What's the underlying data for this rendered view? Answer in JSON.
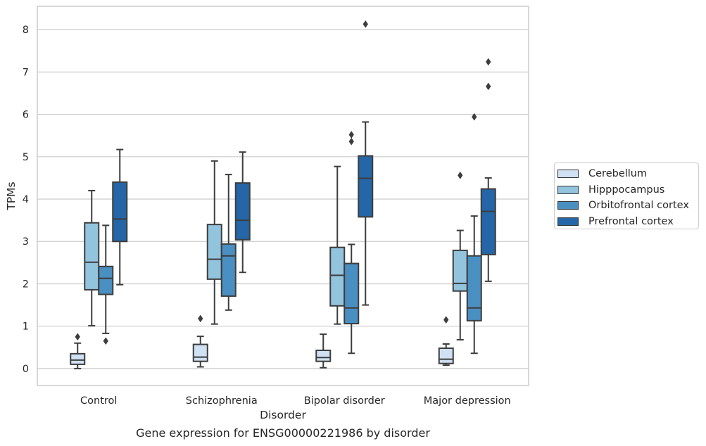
{
  "chart_data": {
    "type": "boxplot",
    "title": "",
    "xlabel": "Disorder",
    "ylabel": "TPMs",
    "ylim": [
      -0.4,
      8.55
    ],
    "yticks": [
      0,
      1,
      2,
      3,
      4,
      5,
      6,
      7,
      8
    ],
    "grid": true,
    "legend_position": "right",
    "categories": [
      "Control",
      "Schizophrenia",
      "Bipolar disorder",
      "Major depression"
    ],
    "series": [
      {
        "name": "Cerebellum",
        "color": "#cfe1f2",
        "boxes": [
          {
            "whislo": 0.0,
            "q1": 0.1,
            "med": 0.2,
            "q3": 0.35,
            "whishi": 0.6,
            "fliers": [
              0.75
            ]
          },
          {
            "whislo": 0.04,
            "q1": 0.17,
            "med": 0.27,
            "q3": 0.57,
            "whishi": 0.76,
            "fliers": [
              1.18
            ]
          },
          {
            "whislo": 0.02,
            "q1": 0.17,
            "med": 0.26,
            "q3": 0.43,
            "whishi": 0.81,
            "fliers": []
          },
          {
            "whislo": 0.08,
            "q1": 0.12,
            "med": 0.22,
            "q3": 0.48,
            "whishi": 0.58,
            "fliers": [
              1.15
            ]
          }
        ]
      },
      {
        "name": "Hipppocampus",
        "color": "#93c4de",
        "boxes": [
          {
            "whislo": 1.01,
            "q1": 1.86,
            "med": 2.51,
            "q3": 3.44,
            "whishi": 4.2,
            "fliers": []
          },
          {
            "whislo": 1.05,
            "q1": 2.11,
            "med": 2.58,
            "q3": 3.4,
            "whishi": 4.9,
            "fliers": []
          },
          {
            "whislo": 1.05,
            "q1": 1.48,
            "med": 2.2,
            "q3": 2.86,
            "whishi": 4.77,
            "fliers": []
          },
          {
            "whislo": 0.68,
            "q1": 1.83,
            "med": 2.01,
            "q3": 2.79,
            "whishi": 3.26,
            "fliers": [
              4.56
            ]
          }
        ]
      },
      {
        "name": "Orbitofrontal cortex",
        "color": "#4a8fc2",
        "boxes": [
          {
            "whislo": 0.83,
            "q1": 1.75,
            "med": 2.13,
            "q3": 2.41,
            "whishi": 3.38,
            "fliers": [
              0.65
            ]
          },
          {
            "whislo": 1.38,
            "q1": 1.71,
            "med": 2.66,
            "q3": 2.94,
            "whishi": 4.58,
            "fliers": []
          },
          {
            "whislo": 0.36,
            "q1": 1.06,
            "med": 1.43,
            "q3": 2.48,
            "whishi": 2.93,
            "fliers": [
              5.36,
              5.52
            ]
          },
          {
            "whislo": 0.36,
            "q1": 1.13,
            "med": 1.43,
            "q3": 2.66,
            "whishi": 3.6,
            "fliers": [
              5.94
            ]
          }
        ]
      },
      {
        "name": "Prefrontal cortex",
        "color": "#2466a7",
        "boxes": [
          {
            "whislo": 1.98,
            "q1": 3.0,
            "med": 3.53,
            "q3": 4.4,
            "whishi": 5.17,
            "fliers": []
          },
          {
            "whislo": 2.27,
            "q1": 3.04,
            "med": 3.5,
            "q3": 4.38,
            "whishi": 5.11,
            "fliers": []
          },
          {
            "whislo": 1.5,
            "q1": 3.58,
            "med": 4.49,
            "q3": 5.02,
            "whishi": 5.82,
            "fliers": [
              8.13
            ]
          },
          {
            "whislo": 2.06,
            "q1": 2.69,
            "med": 3.71,
            "q3": 4.24,
            "whishi": 4.5,
            "fliers": [
              6.66,
              7.24
            ]
          }
        ]
      }
    ]
  },
  "caption": "Gene expression for ENSG00000221986 by disorder"
}
